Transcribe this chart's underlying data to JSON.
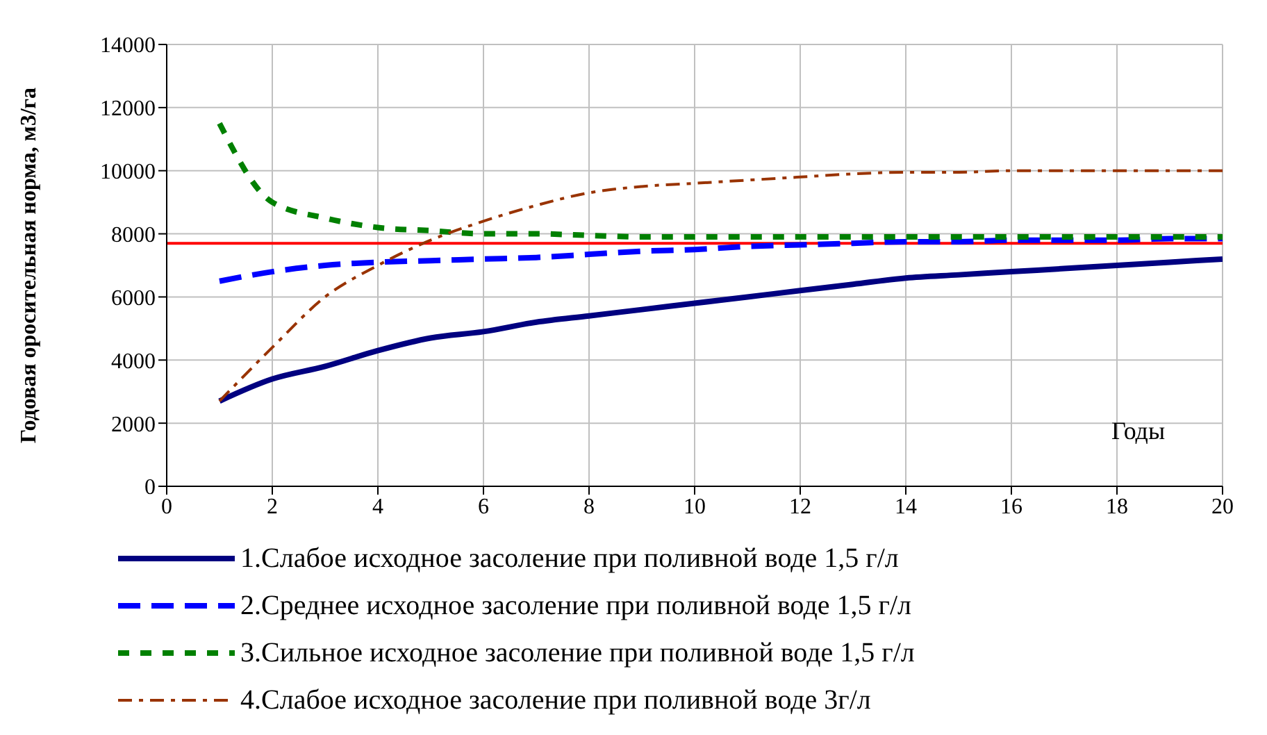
{
  "chart_data": {
    "type": "line",
    "xlabel": "Годы",
    "ylabel": "Годовая оросительная норма, м3/га",
    "x": [
      1,
      2,
      3,
      4,
      5,
      6,
      7,
      8,
      9,
      10,
      11,
      12,
      13,
      14,
      15,
      16,
      17,
      18,
      19,
      20
    ],
    "series": [
      {
        "name": "1.Слабое исходное засоление при поливной воде 1,5 г/л",
        "color": "#000080",
        "line_style": "solid",
        "values": [
          2700,
          3400,
          3800,
          4300,
          4700,
          4900,
          5200,
          5400,
          5600,
          5800,
          6000,
          6200,
          6400,
          6600,
          6700,
          6800,
          6900,
          7000,
          7100,
          7200
        ]
      },
      {
        "name": "2.Среднее исходное засоление при поливной воде 1,5 г/л",
        "color": "#0000ff",
        "line_style": "dashed",
        "values": [
          6500,
          6800,
          7000,
          7100,
          7150,
          7200,
          7250,
          7350,
          7450,
          7500,
          7600,
          7650,
          7700,
          7750,
          7750,
          7800,
          7800,
          7800,
          7850,
          7850
        ]
      },
      {
        "name": "3.Сильное исходное засоление при поливной воде 1,5 г/л",
        "color": "#008000",
        "line_style": "dotted",
        "values": [
          11500,
          9000,
          8500,
          8200,
          8100,
          8000,
          8000,
          7950,
          7900,
          7900,
          7900,
          7900,
          7900,
          7900,
          7900,
          7900,
          7900,
          7900,
          7900,
          7900
        ]
      },
      {
        "name": "4.Слабое исходное засоление при поливной воде 3г/л",
        "color": "#993300",
        "line_style": "dashdot",
        "values": [
          2700,
          4400,
          6000,
          7000,
          7800,
          8400,
          8900,
          9300,
          9500,
          9600,
          9700,
          9800,
          9900,
          9950,
          9950,
          10000,
          10000,
          10000,
          10000,
          10000
        ]
      }
    ],
    "ref_lines": [
      {
        "axis": "y",
        "value": 7700,
        "color": "#ff0000"
      }
    ],
    "xlim": [
      0,
      20
    ],
    "xticks": [
      0,
      2,
      4,
      6,
      8,
      10,
      12,
      14,
      16,
      18,
      20
    ],
    "ylim": [
      0,
      14000
    ],
    "yticks": [
      0,
      2000,
      4000,
      6000,
      8000,
      10000,
      12000,
      14000
    ],
    "grid": true,
    "legend": "bottom",
    "marker": "none"
  }
}
